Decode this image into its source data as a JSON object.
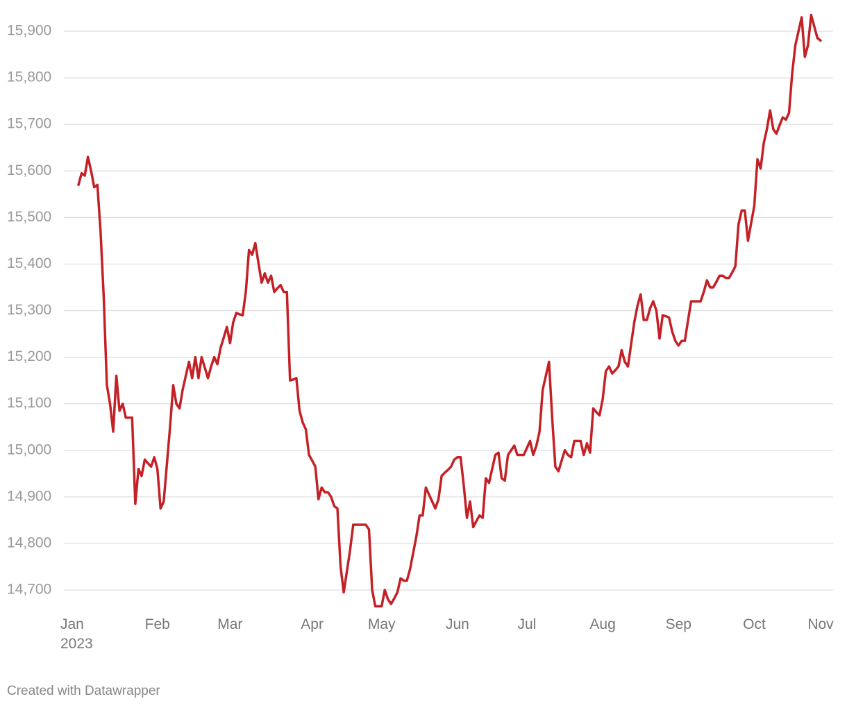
{
  "chart_data": {
    "type": "line",
    "color": "#c42127",
    "grid": true,
    "credit": "Created with Datawrapper",
    "ylim": [
      14660,
      15940
    ],
    "yticks": [
      {
        "value": 14700,
        "label": "14,700"
      },
      {
        "value": 14800,
        "label": "14,800"
      },
      {
        "value": 14900,
        "label": "14,900"
      },
      {
        "value": 15000,
        "label": "15,000"
      },
      {
        "value": 15100,
        "label": "15,100"
      },
      {
        "value": 15200,
        "label": "15,200"
      },
      {
        "value": 15300,
        "label": "15,300"
      },
      {
        "value": 15400,
        "label": "15,400"
      },
      {
        "value": 15500,
        "label": "15,500"
      },
      {
        "value": 15600,
        "label": "15,600"
      },
      {
        "value": 15700,
        "label": "15,700"
      },
      {
        "value": 15800,
        "label": "15,800"
      },
      {
        "value": 15900,
        "label": "15,900"
      }
    ],
    "categories": [
      "Jan\n2023",
      null,
      null,
      null,
      null,
      null,
      null,
      null,
      null,
      null,
      null,
      null,
      null,
      null,
      null,
      null,
      null,
      null,
      null,
      null,
      null,
      null,
      null,
      null,
      null,
      "Feb",
      null,
      null,
      null,
      null,
      null,
      null,
      null,
      null,
      null,
      null,
      null,
      null,
      null,
      null,
      null,
      null,
      null,
      null,
      null,
      null,
      null,
      null,
      "Mar",
      null,
      null,
      null,
      null,
      null,
      null,
      null,
      null,
      null,
      null,
      null,
      null,
      null,
      null,
      null,
      null,
      null,
      null,
      null,
      null,
      null,
      null,
      null,
      null,
      null,
      "Apr",
      null,
      null,
      null,
      null,
      null,
      null,
      null,
      null,
      null,
      null,
      null,
      null,
      null,
      null,
      null,
      null,
      null,
      null,
      null,
      null,
      null,
      "May",
      null,
      null,
      null,
      null,
      null,
      null,
      null,
      null,
      null,
      null,
      null,
      null,
      null,
      null,
      null,
      null,
      null,
      null,
      null,
      null,
      null,
      null,
      null,
      "Jun",
      null,
      null,
      null,
      null,
      null,
      null,
      null,
      null,
      null,
      null,
      null,
      null,
      null,
      null,
      null,
      null,
      null,
      null,
      null,
      null,
      null,
      "Jul",
      null,
      null,
      null,
      null,
      null,
      null,
      null,
      null,
      null,
      null,
      null,
      null,
      null,
      null,
      null,
      null,
      null,
      null,
      null,
      null,
      null,
      null,
      null,
      "Aug",
      null,
      null,
      null,
      null,
      null,
      null,
      null,
      null,
      null,
      null,
      null,
      null,
      null,
      null,
      null,
      null,
      null,
      null,
      null,
      null,
      null,
      null,
      null,
      "Sep",
      null,
      null,
      null,
      null,
      null,
      null,
      null,
      null,
      null,
      null,
      null,
      null,
      null,
      null,
      null,
      null,
      null,
      null,
      null,
      null,
      null,
      null,
      null,
      "Oct",
      null,
      null,
      null,
      null,
      null,
      null,
      null,
      null,
      null,
      null,
      null,
      null,
      null,
      null,
      null,
      null,
      null,
      null,
      null,
      null,
      "Nov"
    ],
    "values": [
      15570,
      15595,
      15590,
      15630,
      15600,
      15565,
      15570,
      15470,
      15330,
      15140,
      15100,
      15040,
      15160,
      15085,
      15100,
      15070,
      15070,
      15070,
      14885,
      14960,
      14945,
      14980,
      14972,
      14965,
      14985,
      14960,
      14875,
      14890,
      14970,
      15050,
      15140,
      15100,
      15090,
      15130,
      15160,
      15190,
      15155,
      15200,
      15155,
      15200,
      15178,
      15155,
      15180,
      15200,
      15185,
      15220,
      15242,
      15265,
      15230,
      15275,
      15295,
      15292,
      15290,
      15340,
      15430,
      15420,
      15445,
      15402,
      15360,
      15380,
      15360,
      15375,
      15340,
      15348,
      15355,
      15340,
      15340,
      15150,
      15152,
      15155,
      15085,
      15060,
      15045,
      14990,
      14978,
      14965,
      14895,
      14920,
      14910,
      14910,
      14900,
      14880,
      14875,
      14750,
      14695,
      14740,
      14785,
      14840,
      14840,
      14840,
      14840,
      14840,
      14830,
      14700,
      14665,
      14665,
      14665,
      14700,
      14680,
      14670,
      14682,
      14695,
      14725,
      14720,
      14720,
      14745,
      14780,
      14815,
      14860,
      14860,
      14920,
      14905,
      14890,
      14875,
      14895,
      14945,
      14952,
      14958,
      14965,
      14980,
      14985,
      14985,
      14925,
      14855,
      14890,
      14835,
      14848,
      14860,
      14855,
      14940,
      14930,
      14960,
      14990,
      14995,
      14940,
      14935,
      14990,
      15000,
      15010,
      14990,
      14990,
      14990,
      15005,
      15020,
      14990,
      15010,
      15040,
      15130,
      15160,
      15190,
      15070,
      14965,
      14955,
      14978,
      15000,
      14990,
      14985,
      15020,
      15020,
      15020,
      14990,
      15015,
      14995,
      15090,
      15082,
      15075,
      15110,
      15170,
      15180,
      15165,
      15172,
      15180,
      15215,
      15190,
      15180,
      15228,
      15275,
      15310,
      15335,
      15280,
      15280,
      15305,
      15320,
      15300,
      15240,
      15290,
      15288,
      15285,
      15255,
      15235,
      15225,
      15235,
      15235,
      15278,
      15320,
      15320,
      15320,
      15320,
      15340,
      15365,
      15350,
      15350,
      15362,
      15375,
      15375,
      15370,
      15370,
      15382,
      15395,
      15485,
      15515,
      15515,
      15450,
      15488,
      15525,
      15625,
      15605,
      15660,
      15690,
      15730,
      15690,
      15680,
      15698,
      15715,
      15710,
      15725,
      15810,
      15870,
      15900,
      15930,
      15845,
      15870,
      15935,
      15910,
      15885,
      15880
    ]
  }
}
